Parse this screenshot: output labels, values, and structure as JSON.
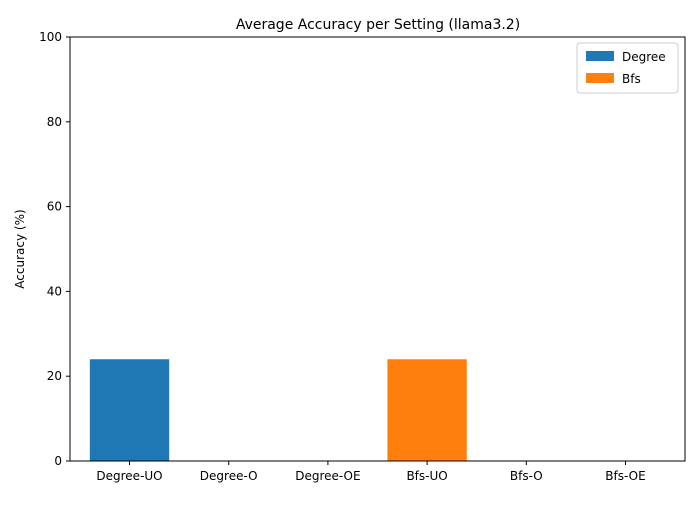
{
  "chart_data": {
    "type": "bar",
    "title": "Average Accuracy per Setting (llama3.2)",
    "xlabel": "",
    "ylabel": "Accuracy (%)",
    "ylim": [
      0,
      100
    ],
    "yticks": [
      0,
      20,
      40,
      60,
      80,
      100
    ],
    "grid": false,
    "legend_position": "top-right",
    "categories": [
      "Degree-UO",
      "Degree-O",
      "Degree-OE",
      "Bfs-UO",
      "Bfs-O",
      "Bfs-OE"
    ],
    "series": [
      {
        "name": "Degree",
        "color": "#1f77b4",
        "values": [
          24,
          0,
          0,
          null,
          null,
          null
        ]
      },
      {
        "name": "Bfs",
        "color": "#ff7f0e",
        "values": [
          null,
          null,
          null,
          24,
          0,
          0
        ]
      }
    ]
  }
}
